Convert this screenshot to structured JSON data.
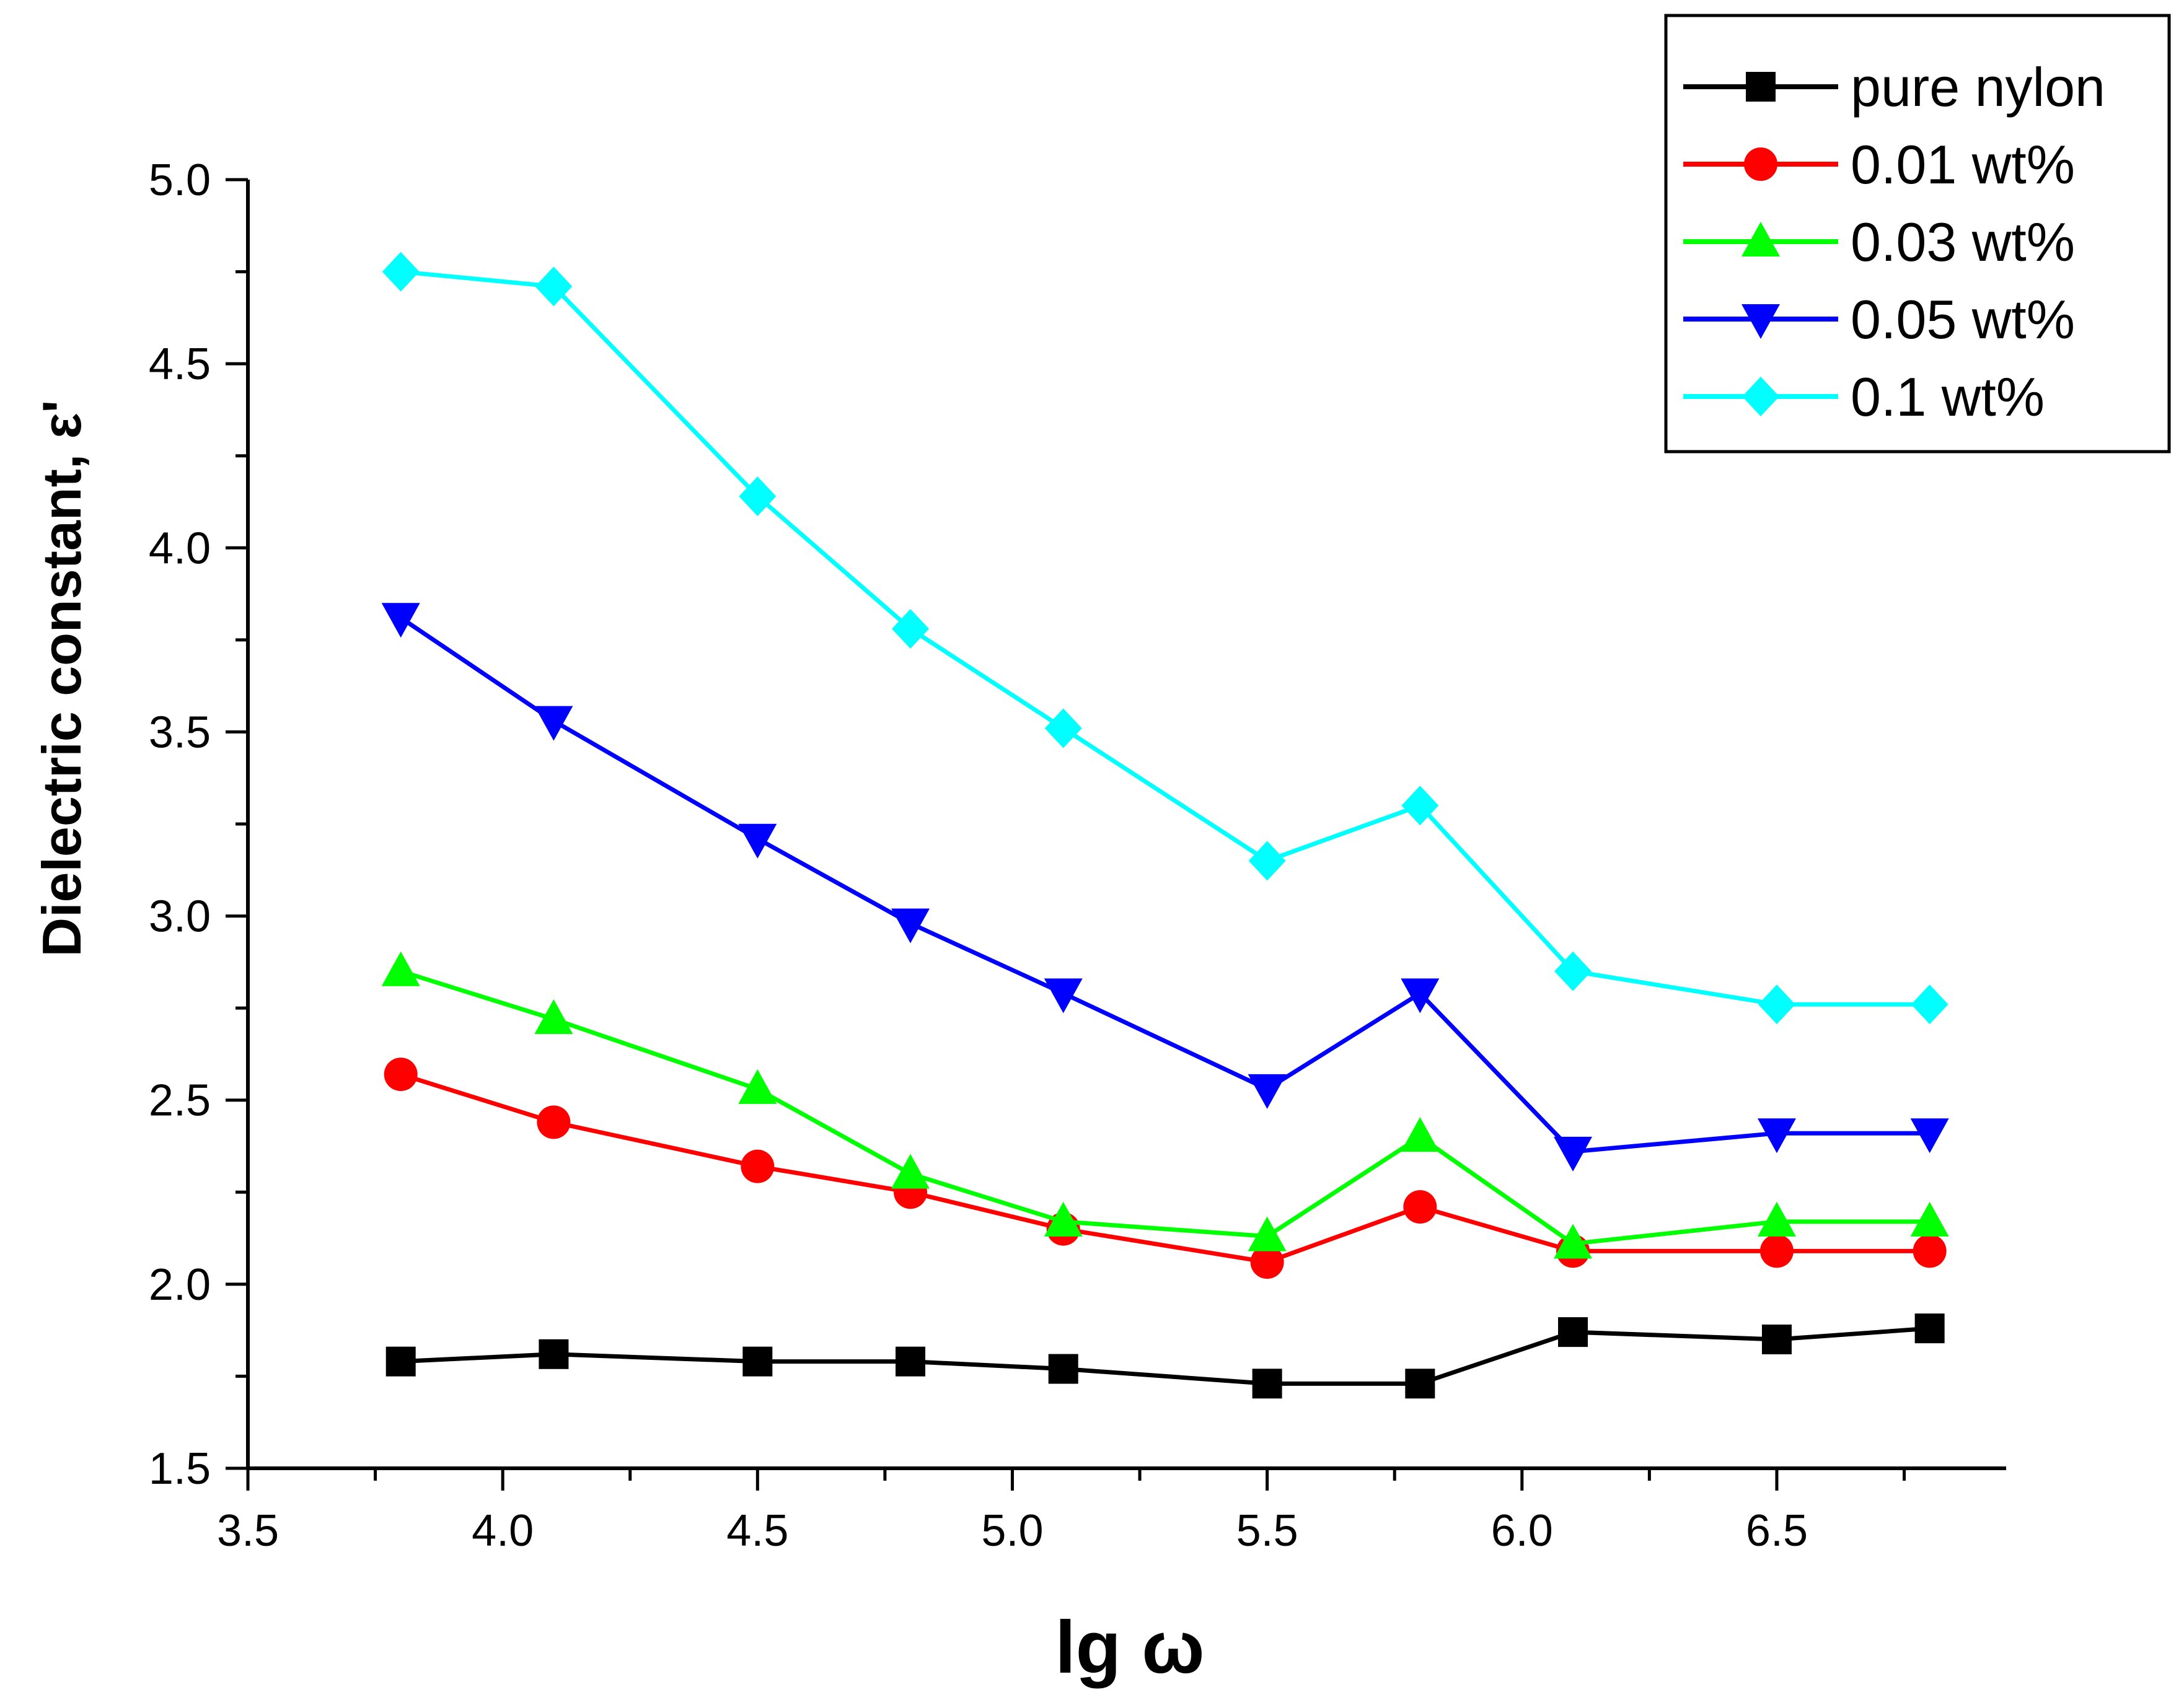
{
  "chart_data": {
    "type": "line",
    "title": "",
    "xlabel": "lg ω",
    "ylabel": "Dielectric constant, ε'",
    "xlim": [
      3.5,
      6.95
    ],
    "ylim": [
      1.5,
      5.0
    ],
    "x_major_ticks": [
      3.5,
      4.0,
      4.5,
      5.0,
      5.5,
      6.0,
      6.5
    ],
    "x_tick_labels": [
      "3.5",
      "4.0",
      "4.5",
      "5.0",
      "5.5",
      "6.0",
      "6.5"
    ],
    "y_major_ticks": [
      1.5,
      2.0,
      2.5,
      3.0,
      3.5,
      4.0,
      4.5,
      5.0
    ],
    "y_tick_labels": [
      "1.5",
      "2.0",
      "2.5",
      "3.0",
      "3.5",
      "4.0",
      "4.5",
      "5.0"
    ],
    "legend_position": "top-right",
    "x": [
      3.8,
      4.1,
      4.5,
      4.8,
      5.1,
      5.5,
      5.8,
      6.1,
      6.5,
      6.8
    ],
    "series": [
      {
        "name": "pure nylon",
        "color": "#000000",
        "marker": "square",
        "values": [
          1.79,
          1.81,
          1.79,
          1.79,
          1.77,
          1.73,
          1.73,
          1.87,
          1.85,
          1.88
        ]
      },
      {
        "name": "0.01 wt%",
        "color": "#ff0000",
        "marker": "circle",
        "values": [
          2.57,
          2.44,
          2.32,
          2.25,
          2.15,
          2.06,
          2.21,
          2.09,
          2.09,
          2.09
        ]
      },
      {
        "name": "0.03 wt%",
        "color": "#00ff00",
        "marker": "triangle-up",
        "values": [
          2.85,
          2.72,
          2.53,
          2.3,
          2.17,
          2.13,
          2.4,
          2.11,
          2.17,
          2.17
        ]
      },
      {
        "name": "0.05 wt%",
        "color": "#0000ff",
        "marker": "triangle-down",
        "values": [
          3.81,
          3.53,
          3.21,
          2.98,
          2.79,
          2.53,
          2.79,
          2.36,
          2.41,
          2.41
        ]
      },
      {
        "name": "0.1 wt%",
        "color": "#00ffff",
        "marker": "diamond",
        "values": [
          4.75,
          4.71,
          4.14,
          3.78,
          3.51,
          3.15,
          3.3,
          2.85,
          2.76,
          2.76
        ]
      }
    ]
  }
}
